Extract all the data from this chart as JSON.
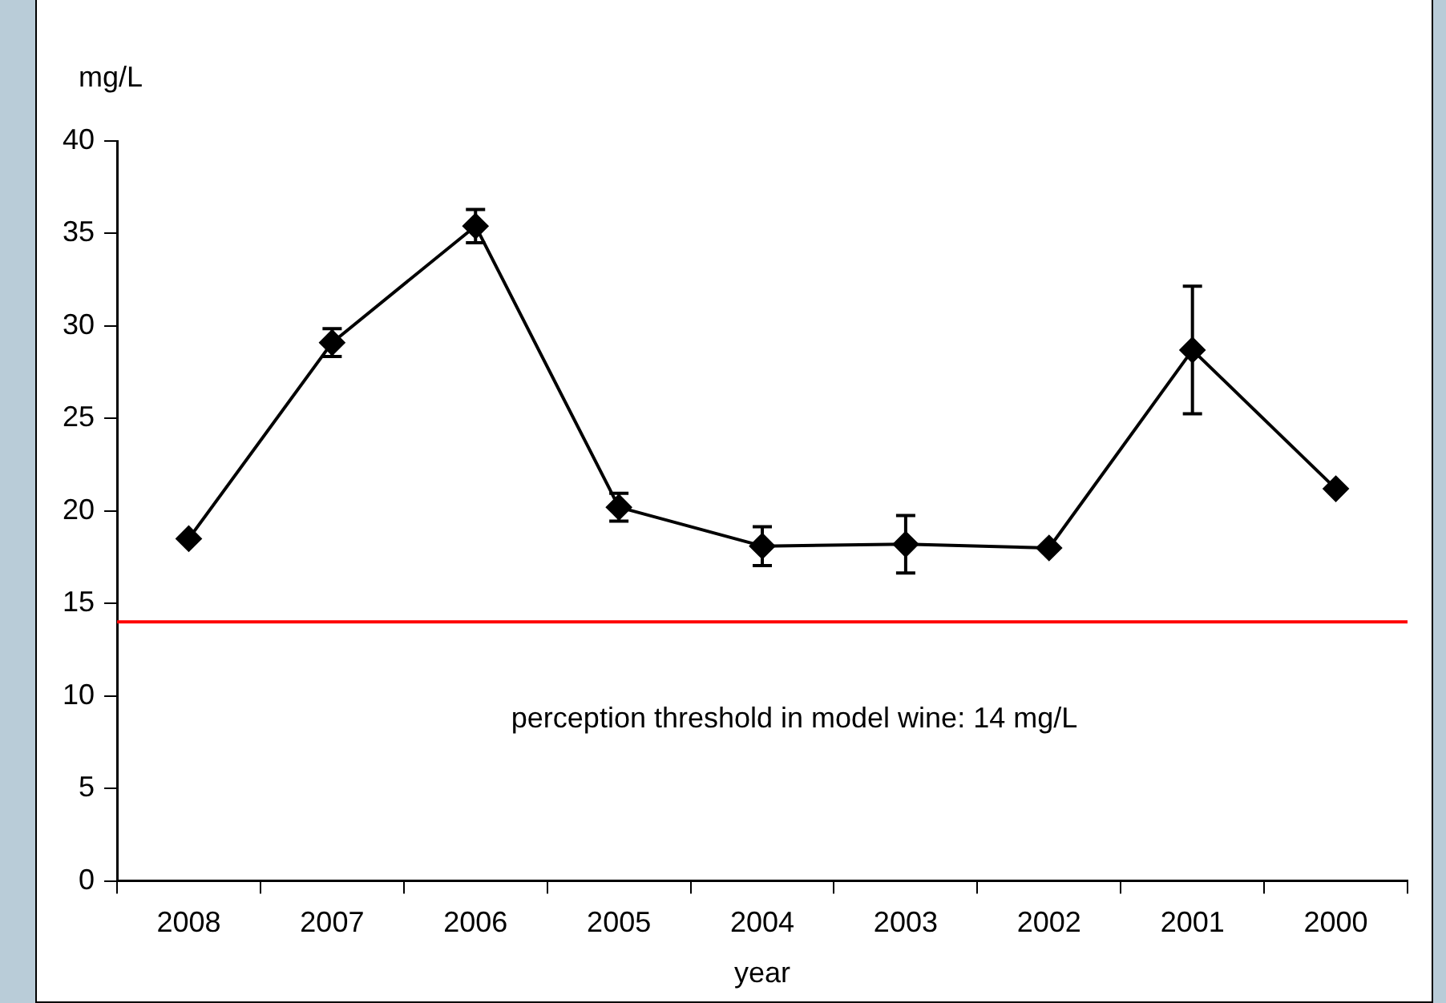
{
  "chart_data": {
    "type": "line",
    "ylabel": "mg/L",
    "xlabel": "year",
    "categories": [
      "2008",
      "2007",
      "2006",
      "2005",
      "2004",
      "2003",
      "2002",
      "2001",
      "2000"
    ],
    "series": [
      {
        "color": "#000000",
        "values": [
          18.5,
          29.1,
          35.4,
          20.2,
          18.1,
          18.2,
          18.0,
          28.7,
          21.2
        ],
        "errors": [
          null,
          0.75,
          0.9,
          0.75,
          1.05,
          1.55,
          null,
          3.45,
          null
        ]
      }
    ],
    "ylim": [
      0,
      40
    ],
    "yticks": [
      0,
      5,
      10,
      15,
      20,
      25,
      30,
      35,
      40
    ],
    "grid": false,
    "legend": false,
    "marker": "diamond",
    "line_style": "solid",
    "ref_lines": [
      {
        "axis": "y",
        "value": 14,
        "label": "perception threshold in model wine: 14 mg/L",
        "color": "#ff0000"
      }
    ]
  }
}
